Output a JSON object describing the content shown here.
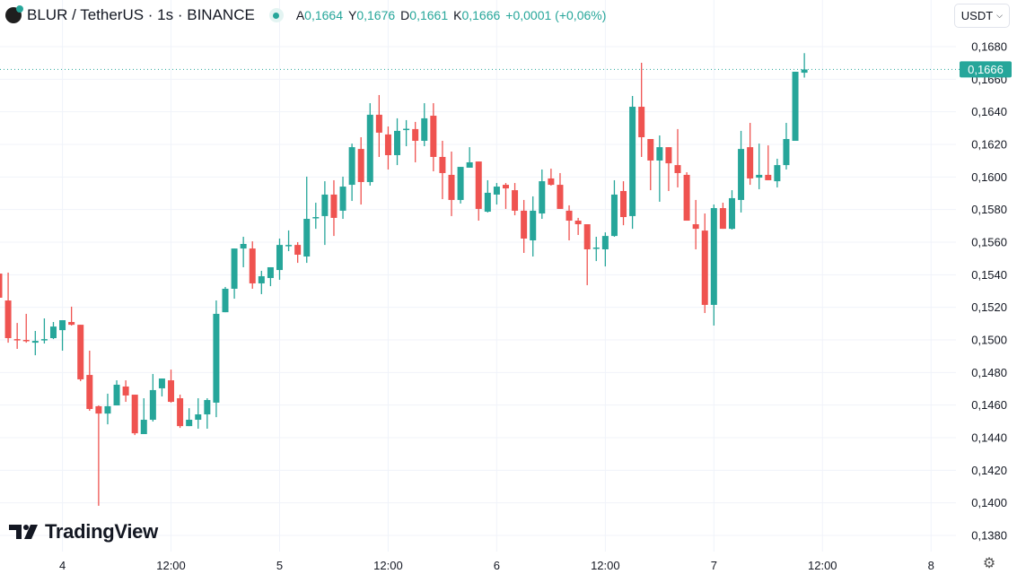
{
  "header": {
    "title": "BLUR / TetherUS · 1s · BINANCE",
    "o_label": "A",
    "o": "0,1664",
    "h_label": "Y",
    "h": "0,1676",
    "l_label": "D",
    "l": "0,1661",
    "c_label": "K",
    "c": "0,1666",
    "change": "+0,0001 (+0,06%)"
  },
  "currency_button": {
    "label": "USDT",
    "icon": "chevron-down-icon"
  },
  "brand": {
    "name": "TradingView"
  },
  "settings_icon": "gear-icon",
  "colors": {
    "up": "#26a69a",
    "down": "#ef5350",
    "grid": "#f0f3fa"
  },
  "chart_data": {
    "type": "candlestick",
    "symbol": "BLUR / TetherUS",
    "current_price": 0.1666,
    "current_price_label": "0,1666",
    "ylim": [
      0.138,
      0.168
    ],
    "y_ticks": [
      "0,1680",
      "0,1660",
      "0,1640",
      "0,1620",
      "0,1600",
      "0,1580",
      "0,1560",
      "0,1540",
      "0,1520",
      "0,1500",
      "0,1480",
      "0,1460",
      "0,1440",
      "0,1420",
      "0,1400",
      "0,1380"
    ],
    "y_tick_values": [
      0.168,
      0.166,
      0.164,
      0.162,
      0.16,
      0.158,
      0.156,
      0.154,
      0.152,
      0.15,
      0.148,
      0.146,
      0.144,
      0.142,
      0.14,
      0.138
    ],
    "x_ticks": [
      {
        "label": "4",
        "index": 7
      },
      {
        "label": "12:00",
        "index": 19
      },
      {
        "label": "5",
        "index": 31
      },
      {
        "label": "12:00",
        "index": 43
      },
      {
        "label": "6",
        "index": 55
      },
      {
        "label": "12:00",
        "index": 67
      },
      {
        "label": "7",
        "index": 79
      },
      {
        "label": "12:00",
        "index": 91
      },
      {
        "label": "8",
        "index": 103
      }
    ],
    "ohlc": [
      [
        0.15407,
        0.15435,
        0.15259,
        0.15259
      ],
      [
        0.15242,
        0.15413,
        0.14983,
        0.15011
      ],
      [
        0.15005,
        0.15104,
        0.14945,
        0.15
      ],
      [
        0.15,
        0.1516,
        0.14983,
        0.14994
      ],
      [
        0.14983,
        0.15055,
        0.14906,
        0.14994
      ],
      [
        0.15,
        0.15132,
        0.14978,
        0.15005
      ],
      [
        0.15011,
        0.1511,
        0.15005,
        0.15082
      ],
      [
        0.1506,
        0.15121,
        0.14934,
        0.15121
      ],
      [
        0.1511,
        0.15204,
        0.15088,
        0.15093
      ],
      [
        0.15093,
        0.15093,
        0.14747,
        0.14758
      ],
      [
        0.14785,
        0.14934,
        0.14565,
        0.14576
      ],
      [
        0.14593,
        0.14598,
        0.13982,
        0.14548
      ],
      [
        0.14548,
        0.1467,
        0.14482,
        0.14593
      ],
      [
        0.14598,
        0.14752,
        0.14598,
        0.14725
      ],
      [
        0.14714,
        0.14752,
        0.1462,
        0.14659
      ],
      [
        0.14664,
        0.14664,
        0.14416,
        0.14427
      ],
      [
        0.14422,
        0.14642,
        0.14422,
        0.1451
      ],
      [
        0.1451,
        0.14791,
        0.14499,
        0.14692
      ],
      [
        0.14703,
        0.14763,
        0.14653,
        0.14763
      ],
      [
        0.14752,
        0.14818,
        0.14615,
        0.1462
      ],
      [
        0.14642,
        0.14664,
        0.1446,
        0.14471
      ],
      [
        0.14471,
        0.14581,
        0.14471,
        0.1451
      ],
      [
        0.1451,
        0.14642,
        0.14455,
        0.14543
      ],
      [
        0.14543,
        0.14642,
        0.14455,
        0.14631
      ],
      [
        0.14615,
        0.15242,
        0.14526,
        0.1516
      ],
      [
        0.1517,
        0.15325,
        0.1517,
        0.15314
      ],
      [
        0.15314,
        0.15561,
        0.15253,
        0.15561
      ],
      [
        0.15561,
        0.15633,
        0.15446,
        0.15589
      ],
      [
        0.15561,
        0.15605,
        0.15314,
        0.15347
      ],
      [
        0.15347,
        0.15424,
        0.15281,
        0.15391
      ],
      [
        0.1538,
        0.15446,
        0.1533,
        0.15446
      ],
      [
        0.15429,
        0.15622,
        0.15369,
        0.15583
      ],
      [
        0.15578,
        0.15672,
        0.15545,
        0.15583
      ],
      [
        0.15583,
        0.156,
        0.15473,
        0.15523
      ],
      [
        0.15512,
        0.16002,
        0.15473,
        0.15743
      ],
      [
        0.15749,
        0.15842,
        0.15682,
        0.15754
      ],
      [
        0.1576,
        0.15974,
        0.15583,
        0.15892
      ],
      [
        0.15892,
        0.1598,
        0.15638,
        0.15749
      ],
      [
        0.15793,
        0.16002,
        0.15743,
        0.15941
      ],
      [
        0.15952,
        0.16205,
        0.15853,
        0.16183
      ],
      [
        0.16172,
        0.16244,
        0.15831,
        0.15969
      ],
      [
        0.15969,
        0.16453,
        0.15947,
        0.16382
      ],
      [
        0.16382,
        0.16503,
        0.16123,
        0.16272
      ],
      [
        0.16261,
        0.1631,
        0.16046,
        0.16134
      ],
      [
        0.16134,
        0.1636,
        0.16073,
        0.16283
      ],
      [
        0.16291,
        0.16349,
        0.16189,
        0.16296
      ],
      [
        0.16294,
        0.16338,
        0.1609,
        0.16222
      ],
      [
        0.16222,
        0.16453,
        0.16189,
        0.1636
      ],
      [
        0.16376,
        0.16453,
        0.16035,
        0.16123
      ],
      [
        0.16123,
        0.16222,
        0.15864,
        0.16024
      ],
      [
        0.16013,
        0.16156,
        0.1576,
        0.15859
      ],
      [
        0.15859,
        0.16062,
        0.15837,
        0.16062
      ],
      [
        0.16057,
        0.16183,
        0.16057,
        0.1609
      ],
      [
        0.16095,
        0.16095,
        0.15732,
        0.15804
      ],
      [
        0.15787,
        0.1598,
        0.15782,
        0.15903
      ],
      [
        0.15892,
        0.15963,
        0.15831,
        0.15941
      ],
      [
        0.15952,
        0.15963,
        0.15804,
        0.1593
      ],
      [
        0.15919,
        0.15963,
        0.15765,
        0.15793
      ],
      [
        0.15793,
        0.15859,
        0.15534,
        0.15622
      ],
      [
        0.15611,
        0.15881,
        0.15512,
        0.15793
      ],
      [
        0.15776,
        0.16046,
        0.15743,
        0.15974
      ],
      [
        0.15991,
        0.16051,
        0.15947,
        0.15952
      ],
      [
        0.15952,
        0.16024,
        0.15804,
        0.15804
      ],
      [
        0.15793,
        0.15826,
        0.15611,
        0.15732
      ],
      [
        0.15732,
        0.15749,
        0.15644,
        0.1571
      ],
      [
        0.1571,
        0.1571,
        0.15336,
        0.15556
      ],
      [
        0.15561,
        0.15633,
        0.15484,
        0.15567
      ],
      [
        0.15556,
        0.1566,
        0.15451,
        0.15638
      ],
      [
        0.15638,
        0.1598,
        0.15633,
        0.15892
      ],
      [
        0.15914,
        0.15974,
        0.15704,
        0.15754
      ],
      [
        0.1576,
        0.16497,
        0.15682,
        0.16431
      ],
      [
        0.16431,
        0.16701,
        0.16123,
        0.16244
      ],
      [
        0.16233,
        0.16233,
        0.15919,
        0.16101
      ],
      [
        0.16101,
        0.16255,
        0.15848,
        0.16183
      ],
      [
        0.16183,
        0.16183,
        0.15914,
        0.16084
      ],
      [
        0.16073,
        0.16294,
        0.15936,
        0.16024
      ],
      [
        0.16013,
        0.16029,
        0.15732,
        0.15732
      ],
      [
        0.1571,
        0.15859,
        0.15556,
        0.15682
      ],
      [
        0.15671,
        0.15776,
        0.15165,
        0.15215
      ],
      [
        0.15215,
        0.15831,
        0.15088,
        0.15809
      ],
      [
        0.15809,
        0.15842,
        0.15682,
        0.15682
      ],
      [
        0.15682,
        0.15919,
        0.15677,
        0.1587
      ],
      [
        0.15859,
        0.16283,
        0.15782,
        0.16172
      ],
      [
        0.16183,
        0.16332,
        0.15952,
        0.15991
      ],
      [
        0.15996,
        0.16205,
        0.15925,
        0.16013
      ],
      [
        0.16013,
        0.16194,
        0.1598,
        0.1598
      ],
      [
        0.15974,
        0.16112,
        0.15936,
        0.16073
      ],
      [
        0.16073,
        0.16332,
        0.16046,
        0.16233
      ],
      [
        0.16222,
        0.16646,
        0.16222,
        0.16646
      ],
      [
        0.1664,
        0.1676,
        0.1661,
        0.1666
      ]
    ]
  }
}
